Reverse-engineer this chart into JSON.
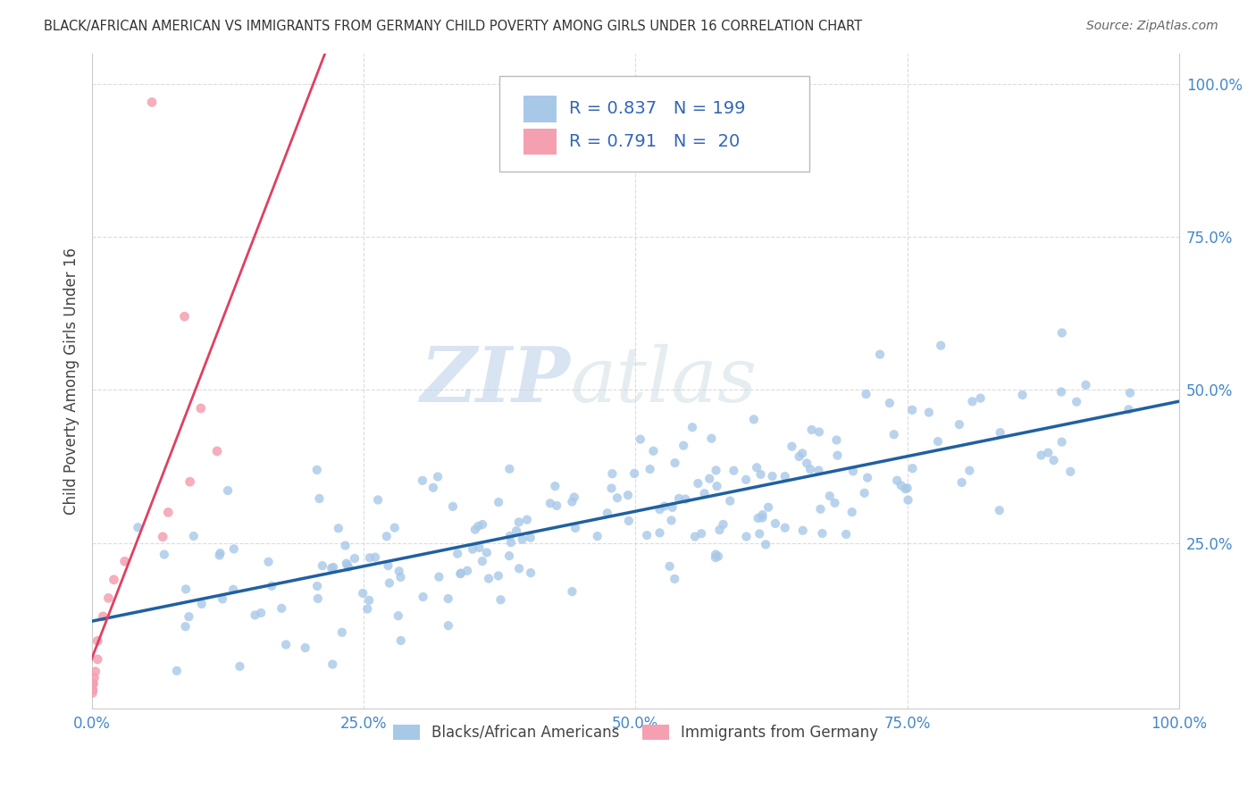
{
  "title": "BLACK/AFRICAN AMERICAN VS IMMIGRANTS FROM GERMANY CHILD POVERTY AMONG GIRLS UNDER 16 CORRELATION CHART",
  "source": "Source: ZipAtlas.com",
  "ylabel": "Child Poverty Among Girls Under 16",
  "xlim": [
    0,
    1.0
  ],
  "ylim": [
    -0.02,
    1.05
  ],
  "blue_R": 0.837,
  "blue_N": 199,
  "pink_R": 0.791,
  "pink_N": 20,
  "blue_color": "#a8c8e8",
  "pink_color": "#f4a0b0",
  "blue_line_color": "#2060a0",
  "pink_line_color": "#e04060",
  "background_color": "#ffffff",
  "grid_color": "#cccccc",
  "legend_labels": [
    "Blacks/African Americans",
    "Immigrants from Germany"
  ],
  "watermark_zip": "ZIP",
  "watermark_atlas": "atlas",
  "xtick_positions": [
    0.0,
    0.25,
    0.5,
    0.75,
    1.0
  ],
  "xtick_labels": [
    "0.0%",
    "25.0%",
    "50.0%",
    "75.0%",
    "100.0%"
  ],
  "ytick_positions": [
    0.25,
    0.5,
    0.75,
    1.0
  ],
  "ytick_labels": [
    "25.0%",
    "50.0%",
    "75.0%",
    "100.0%"
  ],
  "blue_seed": 42,
  "pink_seed": 99,
  "tick_color": "#4488cc"
}
